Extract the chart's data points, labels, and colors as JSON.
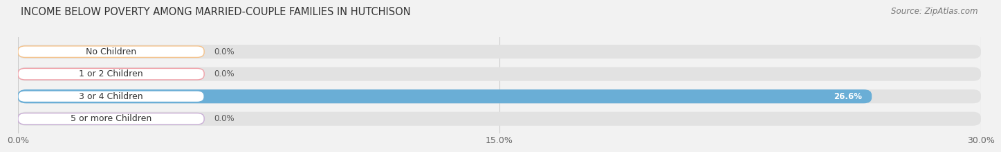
{
  "title": "INCOME BELOW POVERTY AMONG MARRIED-COUPLE FAMILIES IN HUTCHISON",
  "source": "Source: ZipAtlas.com",
  "categories": [
    "No Children",
    "1 or 2 Children",
    "3 or 4 Children",
    "5 or more Children"
  ],
  "values": [
    0.0,
    0.0,
    26.6,
    0.0
  ],
  "bar_colors": [
    "#f5c28a",
    "#f0a0a8",
    "#6aaed6",
    "#c9aed6"
  ],
  "xlim": [
    0,
    30.0
  ],
  "xticks": [
    0.0,
    15.0,
    30.0
  ],
  "xtick_labels": [
    "0.0%",
    "15.0%",
    "30.0%"
  ],
  "background_color": "#f2f2f2",
  "bar_bg_color": "#e2e2e2",
  "title_fontsize": 10.5,
  "source_fontsize": 8.5,
  "label_fontsize": 9,
  "value_fontsize": 8.5,
  "tick_fontsize": 9
}
